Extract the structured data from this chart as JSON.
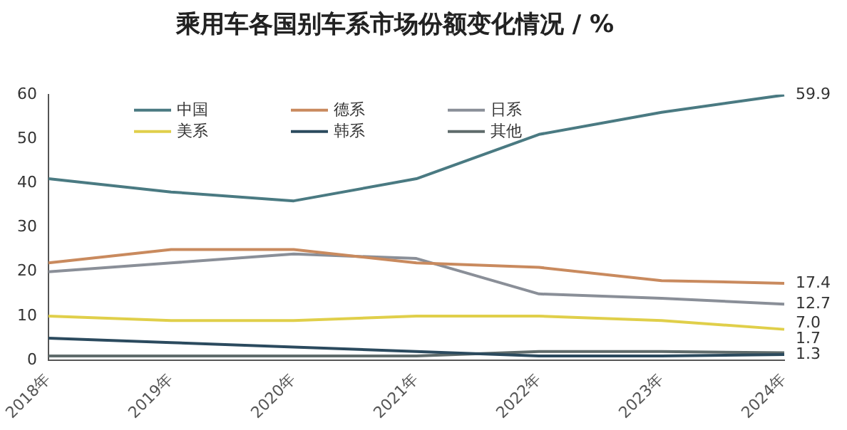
{
  "chart_data": {
    "type": "line",
    "title": "乘用车各国别车系市场份额变化情况 / %",
    "categories": [
      "2018年",
      "2019年",
      "2020年",
      "2021年",
      "2022年",
      "2023年",
      "2024年"
    ],
    "series": [
      {
        "name": "中国",
        "color": "#4a7a82",
        "values": [
          41,
          38,
          36,
          41,
          51,
          56,
          59.9
        ],
        "value_labels": [
          null,
          null,
          null,
          null,
          null,
          null,
          "59.9"
        ]
      },
      {
        "name": "德系",
        "color": "#c98a5e",
        "values": [
          22,
          25,
          25,
          22,
          21,
          18,
          17.4
        ],
        "value_labels": [
          null,
          null,
          null,
          null,
          null,
          null,
          "17.4"
        ]
      },
      {
        "name": "日系",
        "color": "#8a8f98",
        "values": [
          20,
          22,
          24,
          23,
          15,
          14,
          12.7
        ],
        "value_labels": [
          null,
          null,
          null,
          null,
          null,
          null,
          "12.7"
        ]
      },
      {
        "name": "美系",
        "color": "#e0cf4a",
        "values": [
          10,
          9,
          9,
          10,
          10,
          9,
          7.0
        ],
        "value_labels": [
          null,
          null,
          null,
          null,
          null,
          null,
          "7.0"
        ]
      },
      {
        "name": "韩系",
        "color": "#2b4a5e",
        "values": [
          5,
          4,
          3,
          2,
          1,
          1,
          1.3
        ],
        "value_labels": [
          null,
          null,
          null,
          null,
          null,
          null,
          "1.3"
        ]
      },
      {
        "name": "其他",
        "color": "#5f6b6b",
        "values": [
          1,
          1,
          1,
          1,
          2,
          2,
          1.7
        ],
        "value_labels": [
          null,
          null,
          null,
          null,
          null,
          null,
          "1.7"
        ]
      }
    ],
    "ylim": [
      0,
      60
    ],
    "yticks": [
      0,
      10,
      20,
      30,
      40,
      50,
      60
    ],
    "grid": false,
    "legend": "top",
    "marker": "none",
    "line_style": "solid"
  }
}
